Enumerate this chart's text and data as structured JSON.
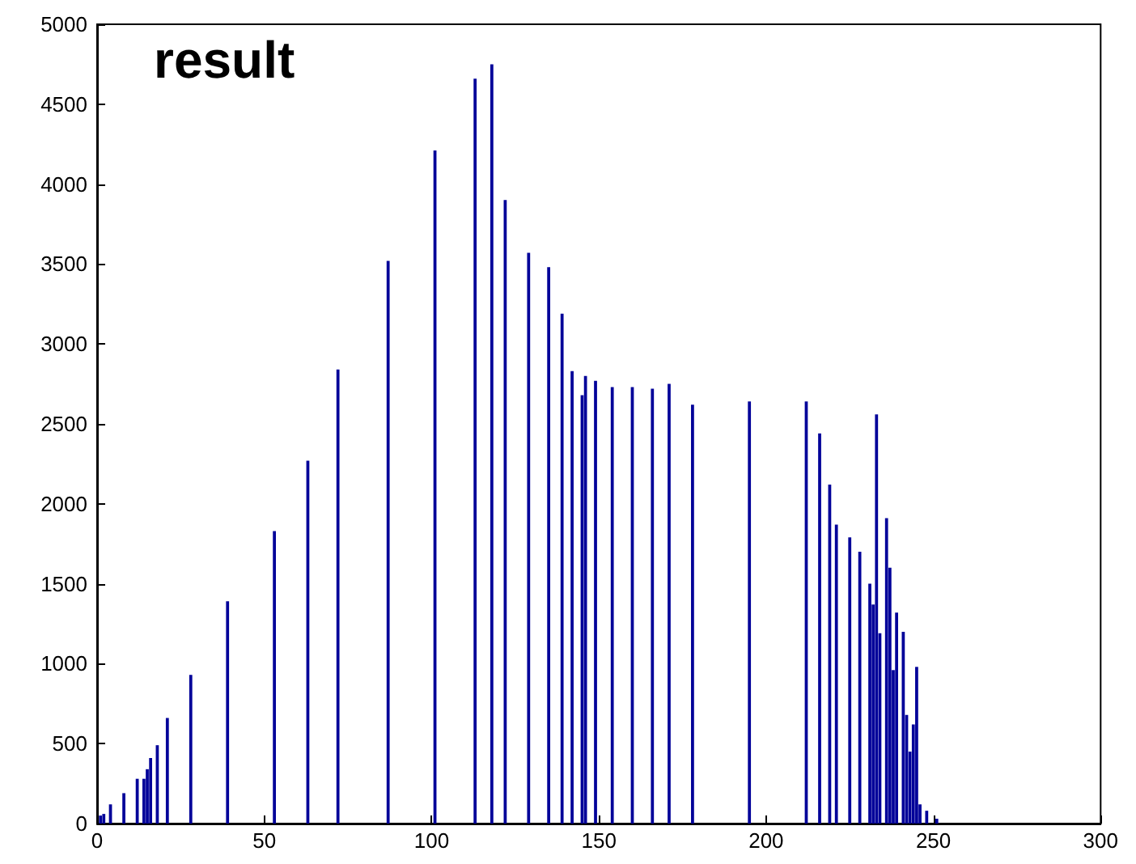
{
  "chart_data": {
    "type": "bar",
    "title": "result",
    "color": "#000099",
    "x": [
      1,
      2,
      4,
      8,
      12,
      14,
      15,
      16,
      18,
      21,
      28,
      39,
      53,
      63,
      72,
      87,
      101,
      113,
      118,
      122,
      129,
      135,
      139,
      142,
      145,
      146,
      149,
      154,
      160,
      166,
      171,
      178,
      195,
      212,
      216,
      219,
      221,
      225,
      228,
      231,
      232,
      233,
      234,
      236,
      237,
      238,
      239,
      241,
      242,
      243,
      244,
      245,
      246,
      248,
      251
    ],
    "values": [
      50,
      60,
      120,
      190,
      280,
      280,
      340,
      410,
      490,
      660,
      930,
      1390,
      1830,
      2270,
      2840,
      3520,
      4210,
      4660,
      4750,
      3900,
      3570,
      3480,
      3190,
      2830,
      2680,
      2800,
      2770,
      2730,
      2730,
      2720,
      2750,
      2620,
      2640,
      2640,
      2440,
      2120,
      1870,
      1790,
      1700,
      1500,
      1370,
      2560,
      1190,
      1910,
      1600,
      960,
      1320,
      1200,
      680,
      450,
      620,
      980,
      120,
      80,
      30
    ],
    "xlim": [
      0,
      300
    ],
    "xticks": [
      0,
      50,
      100,
      150,
      200,
      250,
      300
    ],
    "ylim": [
      0,
      5000
    ],
    "yticks": [
      0,
      500,
      1000,
      1500,
      2000,
      2500,
      3000,
      3500,
      4000,
      4500,
      5000
    ],
    "grid": false
  }
}
